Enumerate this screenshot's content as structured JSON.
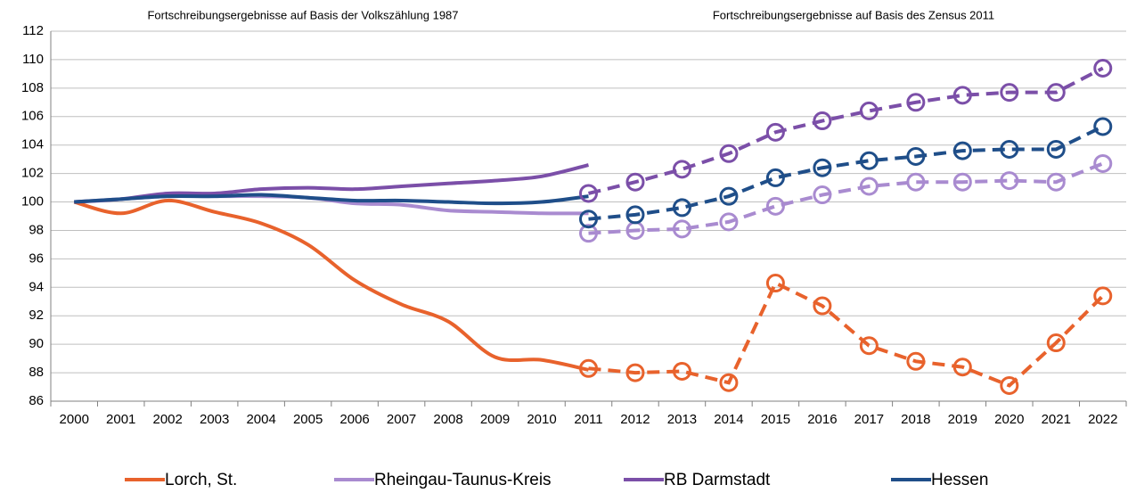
{
  "chart_data": {
    "type": "line",
    "annotations": [
      "Fortschreibungsergebnisse auf Basis der Volkszählung 1987",
      "Fortschreibungsergebnisse auf Basis des Zensus 2011"
    ],
    "categories": [
      "2000",
      "2001",
      "2002",
      "2003",
      "2004",
      "2005",
      "2006",
      "2007",
      "2008",
      "2009",
      "2010",
      "2011",
      "2012",
      "2013",
      "2014",
      "2015",
      "2016",
      "2017",
      "2018",
      "2019",
      "2020",
      "2021",
      "2022"
    ],
    "ylim": [
      86,
      112
    ],
    "yticks": [
      86,
      88,
      90,
      92,
      94,
      96,
      98,
      100,
      102,
      104,
      106,
      108,
      110,
      112
    ],
    "grid": true,
    "series": [
      {
        "name": "Lorch, St.",
        "color": "#e8622c",
        "values": [
          100,
          99.2,
          100.1,
          99.3,
          98.5,
          97,
          94.5,
          92.8,
          91.6,
          89.1,
          88.9,
          88.2,
          null,
          null,
          null,
          null,
          null,
          null,
          null,
          null,
          null,
          null,
          null
        ],
        "census_values": [
          null,
          null,
          null,
          null,
          null,
          null,
          null,
          null,
          null,
          null,
          null,
          88.3,
          88.0,
          88.1,
          87.3,
          94.3,
          92.7,
          89.9,
          88.8,
          88.4,
          87.1,
          90.1,
          93.4
        ]
      },
      {
        "name": "Rheingau-Taunus-Kreis",
        "color": "#a98bd0",
        "values": [
          100,
          100.2,
          100.4,
          100.4,
          100.4,
          100.3,
          99.9,
          99.8,
          99.4,
          99.3,
          99.2,
          99.2,
          null,
          null,
          null,
          null,
          null,
          null,
          null,
          null,
          null,
          null,
          null
        ],
        "census_values": [
          null,
          null,
          null,
          null,
          null,
          null,
          null,
          null,
          null,
          null,
          null,
          97.8,
          98.0,
          98.1,
          98.6,
          99.7,
          100.5,
          101.1,
          101.4,
          101.4,
          101.5,
          101.4,
          102.7
        ]
      },
      {
        "name": "RB Darmstadt",
        "color": "#7b4fa8",
        "values": [
          100,
          100.2,
          100.6,
          100.6,
          100.9,
          101.0,
          100.9,
          101.1,
          101.3,
          101.5,
          101.8,
          102.6,
          null,
          null,
          null,
          null,
          null,
          null,
          null,
          null,
          null,
          null,
          null
        ],
        "census_values": [
          null,
          null,
          null,
          null,
          null,
          null,
          null,
          null,
          null,
          null,
          null,
          100.6,
          101.4,
          102.3,
          103.4,
          104.9,
          105.7,
          106.4,
          107.0,
          107.5,
          107.7,
          107.7,
          109.4
        ]
      },
      {
        "name": "Hessen",
        "color": "#1f4e89",
        "values": [
          100,
          100.2,
          100.4,
          100.4,
          100.5,
          100.3,
          100.1,
          100.1,
          100.0,
          99.9,
          100.0,
          100.4,
          null,
          null,
          null,
          null,
          null,
          null,
          null,
          null,
          null,
          null,
          null
        ],
        "census_values": [
          null,
          null,
          null,
          null,
          null,
          null,
          null,
          null,
          null,
          null,
          null,
          98.8,
          99.1,
          99.6,
          100.4,
          101.7,
          102.4,
          102.9,
          103.2,
          103.6,
          103.7,
          103.7,
          105.3
        ]
      }
    ]
  }
}
